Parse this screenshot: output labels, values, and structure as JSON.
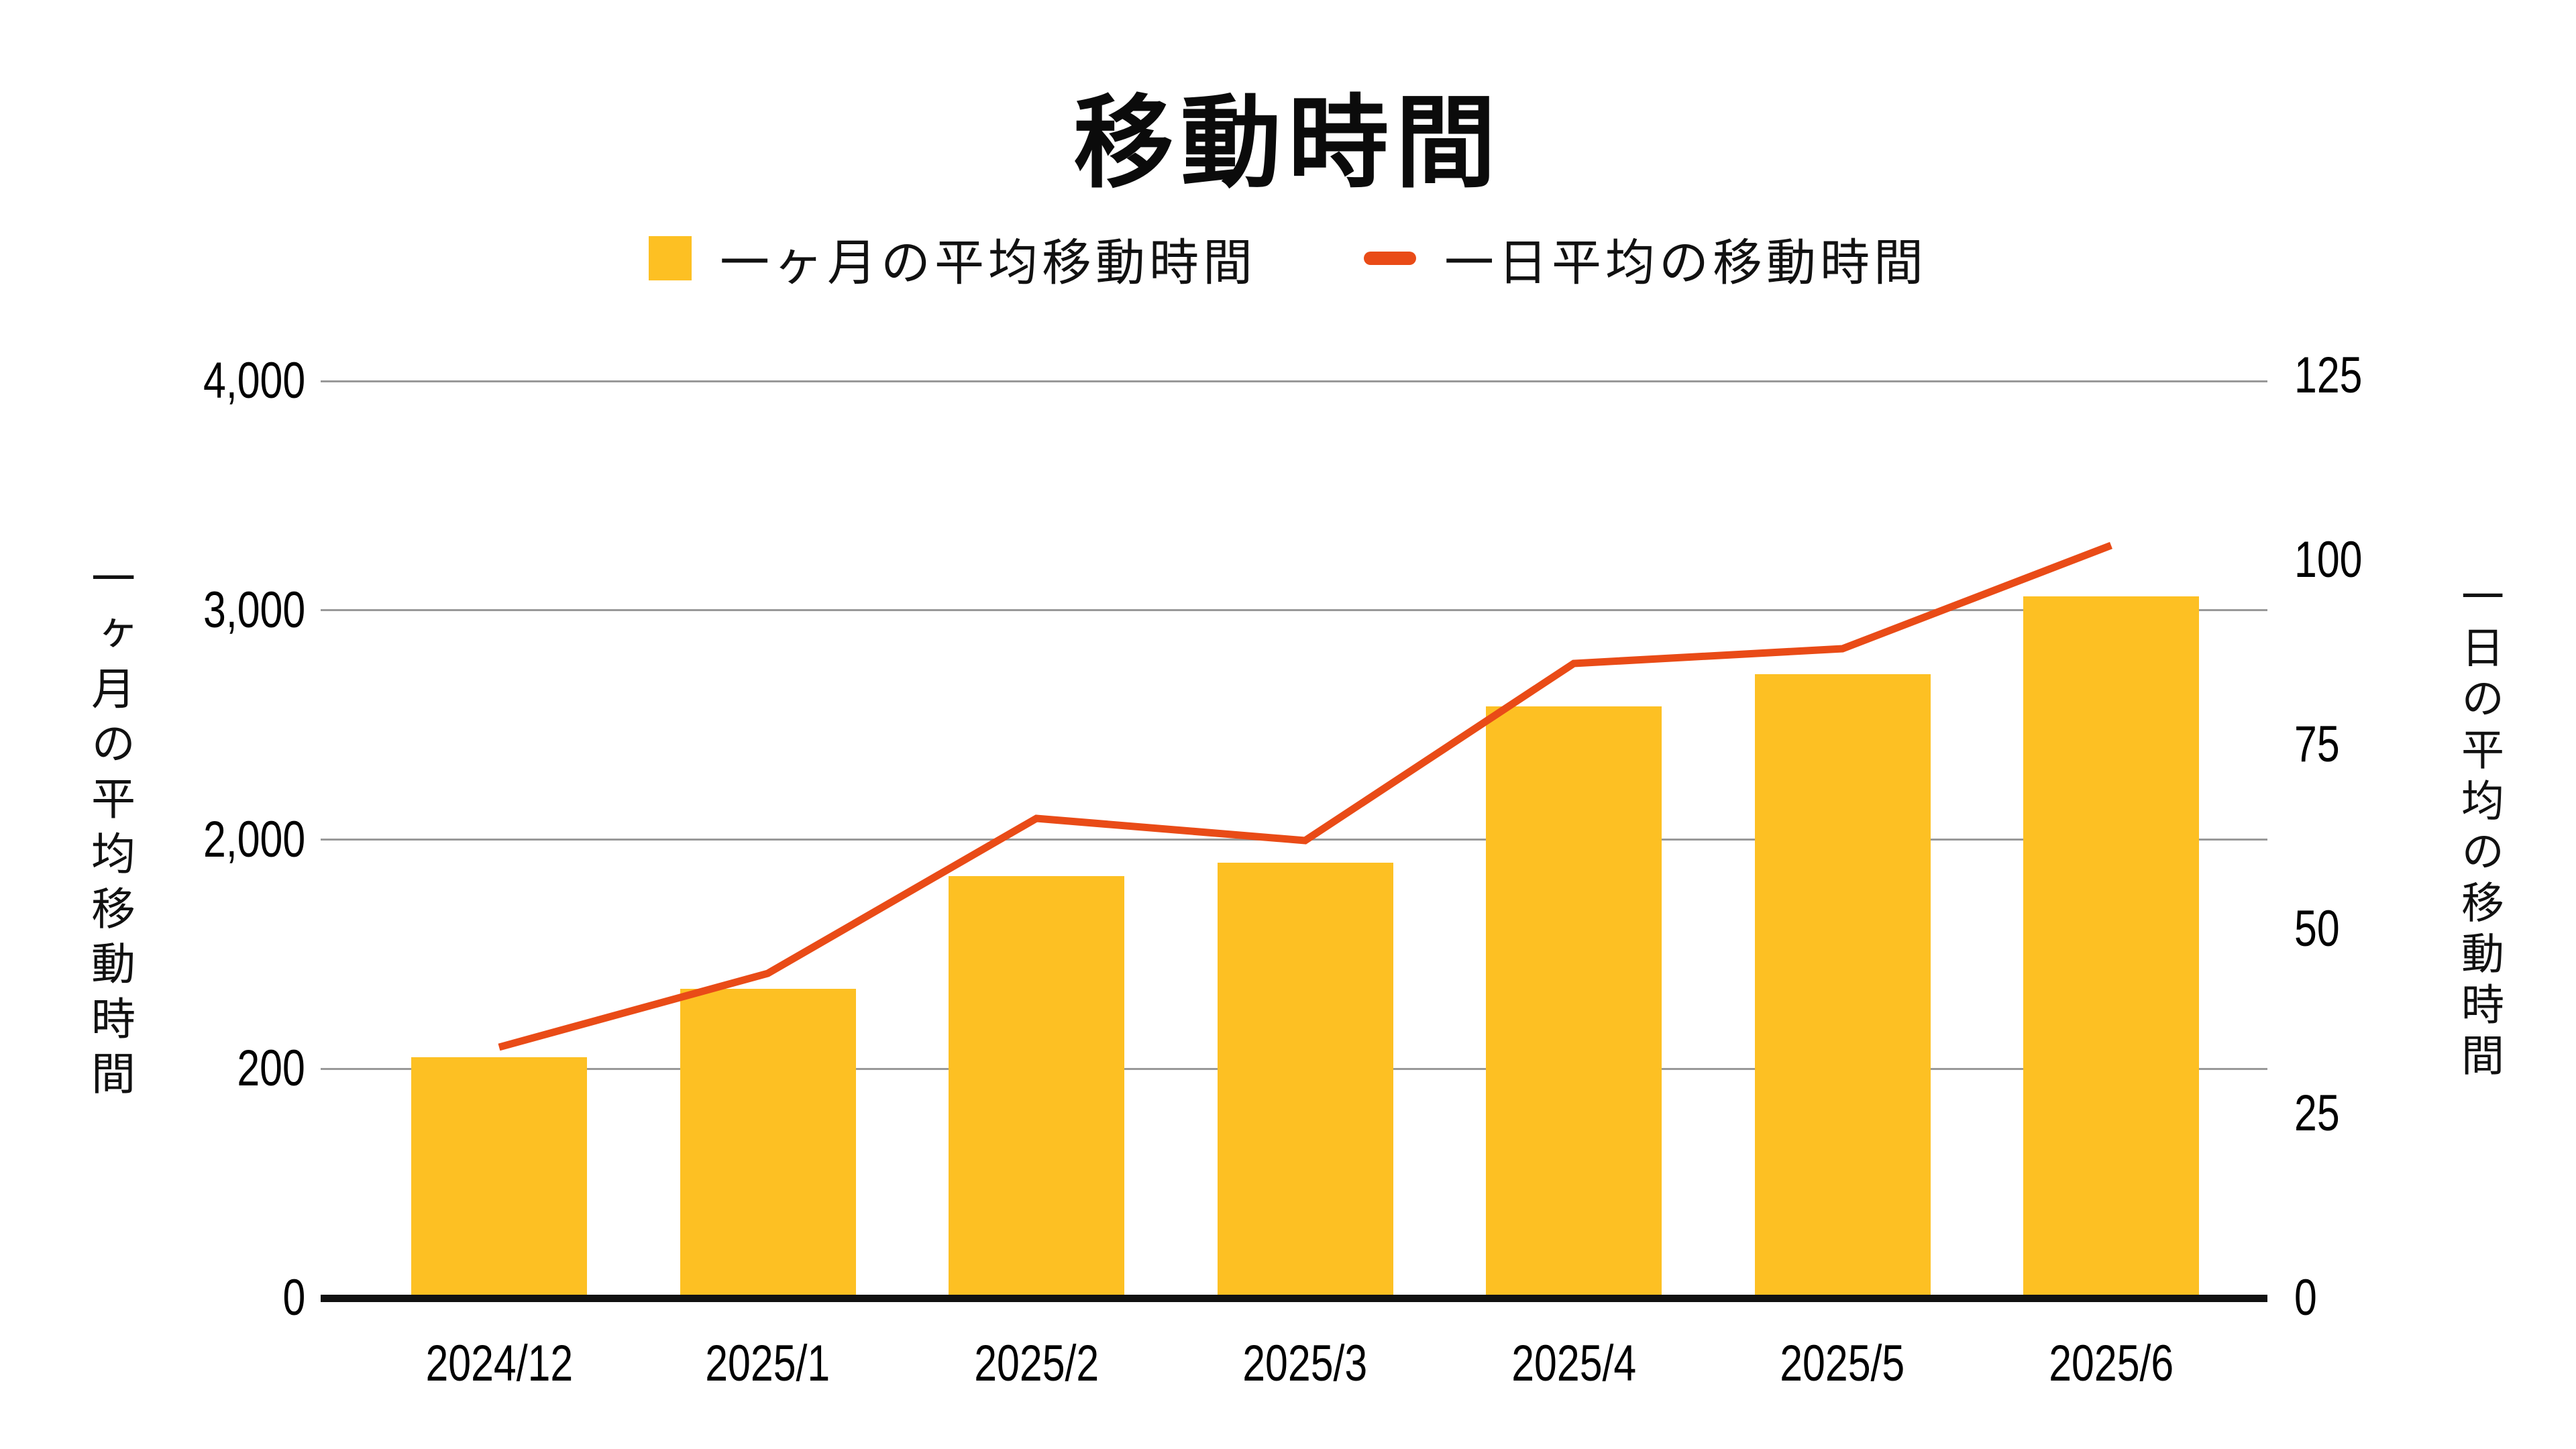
{
  "chart_data": {
    "type": "combo",
    "title": "移動時間",
    "categories": [
      "2024/12",
      "2025/1",
      "2025/2",
      "2025/3",
      "2025/4",
      "2025/5",
      "2025/6"
    ],
    "series": [
      {
        "name": "一ヶ月の平均移動時間",
        "type": "bar",
        "axis": "left",
        "color": "#FDC023",
        "values": [
          1050,
          1350,
          1840,
          1900,
          2580,
          2720,
          3060
        ]
      },
      {
        "name": "一日平均の移動時間",
        "type": "line",
        "axis": "right",
        "color": "#E94B17",
        "values": [
          34,
          44,
          65,
          62,
          86,
          88,
          102
        ]
      }
    ],
    "left_axis": {
      "title": "一ヶ月の平均移動時間",
      "tick_labels": [
        "0",
        "200",
        "2,000",
        "3,000",
        "4,000"
      ],
      "range": [
        0,
        4000
      ]
    },
    "right_axis": {
      "title": "一日の平均の移動時間",
      "tick_labels": [
        "0",
        "25",
        "50",
        "75",
        "100",
        "125"
      ],
      "range": [
        0,
        125
      ]
    },
    "grid": true,
    "legend_position": "top",
    "colors": {
      "grid": "#999999",
      "axis_line": "#111111",
      "text": "#000000",
      "background": "#ffffff"
    }
  }
}
